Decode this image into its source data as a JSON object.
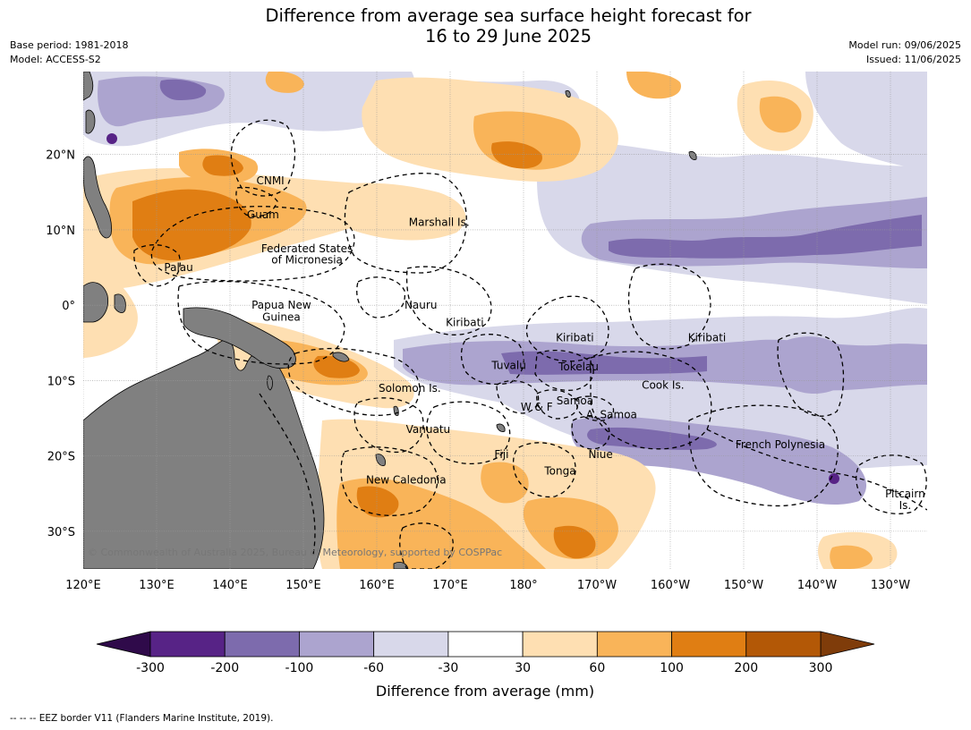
{
  "title_line1": "Difference from average sea surface height forecast for",
  "title_line2": "16 to 29 June 2025",
  "meta_left": {
    "base_period": "Base period: 1981-2018",
    "model": "Model: ACCESS-S2"
  },
  "meta_right": {
    "model_run": "Model run: 09/06/2025",
    "issued": "Issued: 11/06/2025"
  },
  "copyright": "© Commonwealth of Australia 2025, Bureau of Meteorology, supported by COSPPac",
  "footnote": "--  --  -- EEZ border V11 (Flanders Marine Institute, 2019).",
  "map": {
    "lon_range": [
      120,
      -125
    ],
    "lat_range": [
      -35,
      31
    ],
    "lon_ticks": [
      "120°E",
      "130°E",
      "140°E",
      "150°E",
      "160°E",
      "170°E",
      "180°",
      "170°W",
      "160°W",
      "150°W",
      "140°W",
      "130°W"
    ],
    "lat_ticks": [
      "20°N",
      "10°N",
      "0°",
      "10°S",
      "20°S",
      "30°S"
    ],
    "place_labels": [
      {
        "text": "CNMI",
        "lon": 145.5,
        "lat": 16.5
      },
      {
        "text": "Guam",
        "lon": 144.5,
        "lat": 12.0
      },
      {
        "text": "Marshall Is.",
        "lon": 168.5,
        "lat": 11.0
      },
      {
        "text": "Federated States",
        "lon": 150.5,
        "lat": 7.5
      },
      {
        "text": "of Micronesia",
        "lon": 150.5,
        "lat": 6.0
      },
      {
        "text": "Palau",
        "lon": 133.0,
        "lat": 5.0
      },
      {
        "text": "Papua New",
        "lon": 147.0,
        "lat": 0.0
      },
      {
        "text": "Guinea",
        "lon": 147.0,
        "lat": -1.6
      },
      {
        "text": "Nauru",
        "lon": 166.0,
        "lat": 0.0
      },
      {
        "text": "Kiribati",
        "lon": 172.0,
        "lat": -2.3
      },
      {
        "text": "Kiribati",
        "lon": -173.0,
        "lat": -4.3
      },
      {
        "text": "Kiribati",
        "lon": -155.0,
        "lat": -4.3
      },
      {
        "text": "Tuvalu",
        "lon": 178.0,
        "lat": -8.0
      },
      {
        "text": "Tokelau",
        "lon": -172.5,
        "lat": -8.2
      },
      {
        "text": "Cook Is.",
        "lon": -161.0,
        "lat": -10.6
      },
      {
        "text": "Solomon Is.",
        "lon": 164.5,
        "lat": -11.0
      },
      {
        "text": "W & F",
        "lon": -178.2,
        "lat": -13.5
      },
      {
        "text": "Samoa",
        "lon": -173.0,
        "lat": -12.7
      },
      {
        "text": "A. Samoa",
        "lon": -168.0,
        "lat": -14.5
      },
      {
        "text": "Vanuatu",
        "lon": 167.0,
        "lat": -16.5
      },
      {
        "text": "French Polynesia",
        "lon": -145.0,
        "lat": -18.5
      },
      {
        "text": "Fiji",
        "lon": 177.0,
        "lat": -19.8
      },
      {
        "text": "Niue",
        "lon": -169.5,
        "lat": -19.8
      },
      {
        "text": "Tonga",
        "lon": -175.0,
        "lat": -22.0
      },
      {
        "text": "New Caledonia",
        "lon": 164.0,
        "lat": -23.2
      },
      {
        "text": "Pitcairn",
        "lon": -128.0,
        "lat": -25.0
      },
      {
        "text": "Is.",
        "lon": -128.0,
        "lat": -26.6
      }
    ]
  },
  "colorbar": {
    "label": "Difference from average (mm)",
    "tick_labels": [
      "-300",
      "-200",
      "-100",
      "-60",
      "-30",
      "30",
      "60",
      "100",
      "200",
      "300"
    ],
    "under_color": "#2f0a4a",
    "over_color": "#7f3c0a",
    "colors": [
      "#572386",
      "#7d6bad",
      "#aca4cf",
      "#d8d8ea",
      "#ffffff",
      "#fedfb2",
      "#f9b459",
      "#e07e13",
      "#b35806"
    ]
  },
  "field_colors": {
    "neg_light": "#d8d8ea",
    "neg_mid": "#aca4cf",
    "neg_dark": "#7d6bad",
    "neg_deep": "#572386",
    "pos_light": "#fedfb2",
    "pos_mid": "#f9b459",
    "pos_dark": "#e07e13",
    "pos_deep": "#b35806",
    "land": "#808080",
    "grid": "#999999"
  }
}
